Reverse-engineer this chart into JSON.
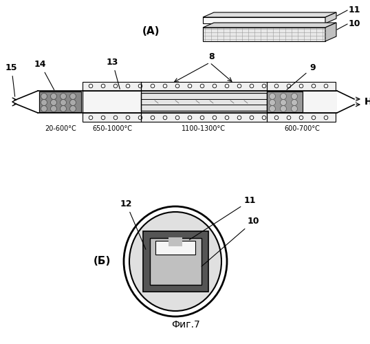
{
  "title": "Фиг.7",
  "label_A": "(А)",
  "label_B": "(Б)",
  "bg_color": "#ffffff",
  "line_color": "#000000",
  "temp_labels": [
    "20-600°C",
    "650-1000°C",
    "1100-1300°C",
    "600-700°C"
  ],
  "he_label": "He"
}
